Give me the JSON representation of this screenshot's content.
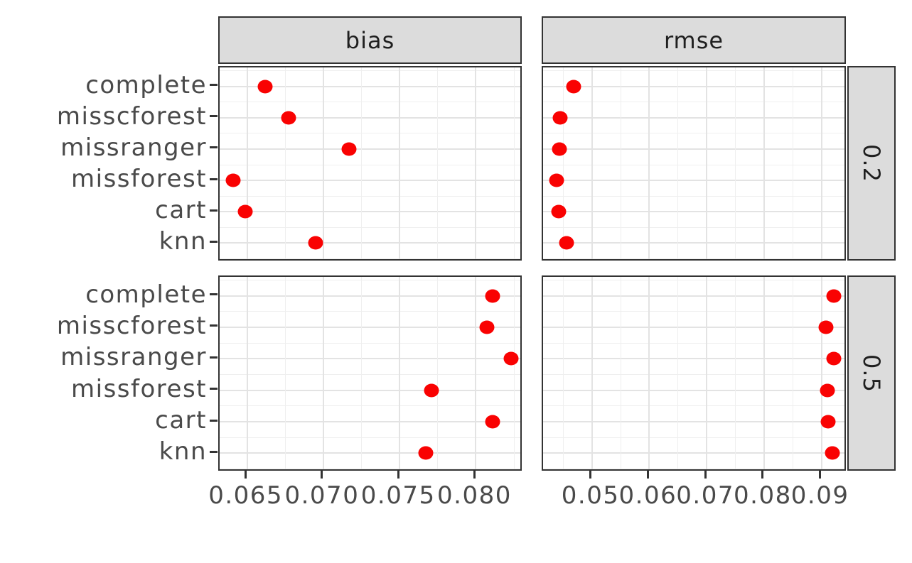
{
  "chart_data": {
    "type": "scatter",
    "description": "Faceted dot plot of imputation method performance; columns are metrics, rows are missing-data rates",
    "facet_columns": [
      "bias",
      "rmse"
    ],
    "facet_rows": [
      "0.2",
      "0.5"
    ],
    "categories": [
      "complete",
      "misscforest",
      "missranger",
      "missforest",
      "cart",
      "knn"
    ],
    "panels": [
      {
        "metric": "bias",
        "rate": "0.2",
        "values": [
          0.0662,
          0.0677,
          0.0717,
          0.0641,
          0.0649,
          0.0695
        ]
      },
      {
        "metric": "rmse",
        "rate": "0.2",
        "values": [
          0.0468,
          0.0445,
          0.0444,
          0.0438,
          0.0442,
          0.0456
        ]
      },
      {
        "metric": "bias",
        "rate": "0.5",
        "values": [
          0.0811,
          0.0807,
          0.0823,
          0.0771,
          0.0811,
          0.0767
        ]
      },
      {
        "metric": "rmse",
        "rate": "0.5",
        "values": [
          0.0922,
          0.0908,
          0.0922,
          0.091,
          0.0911,
          0.0919
        ]
      }
    ],
    "x_axes": [
      {
        "metric": "bias",
        "domain": [
          0.0632,
          0.0831
        ],
        "ticks": [
          0.065,
          0.07,
          0.075,
          0.08
        ],
        "tick_labels": [
          "0.065",
          "0.070",
          "0.075",
          "0.080"
        ],
        "minor_ticks": [
          0.0675,
          0.0725,
          0.0775,
          0.0825
        ]
      },
      {
        "metric": "rmse",
        "domain": [
          0.0415,
          0.0945
        ],
        "ticks": [
          0.05,
          0.06,
          0.07,
          0.08,
          0.09
        ],
        "tick_labels": [
          "0.05",
          "0.06",
          "0.07",
          "0.08",
          "0.09"
        ],
        "minor_ticks": [
          0.045,
          0.055,
          0.065,
          0.075,
          0.085
        ]
      }
    ],
    "y_axis": {
      "type": "discrete",
      "order_top_to_bottom": [
        "complete",
        "misscforest",
        "missranger",
        "missforest",
        "cart",
        "knn"
      ]
    },
    "grid": true,
    "legend": false,
    "title": ""
  },
  "style": {
    "point_color": "#F90202",
    "strip_fill": "#DCDCDC",
    "strip_border": "#333333",
    "panel_border": "#333333",
    "grid_major_color": "#E3E3E3",
    "grid_minor_color": "#EFEFEF",
    "axis_text_color": "#4A4A4A",
    "strip_text_color": "#1F1F1F",
    "background": "#FFFFFF"
  }
}
